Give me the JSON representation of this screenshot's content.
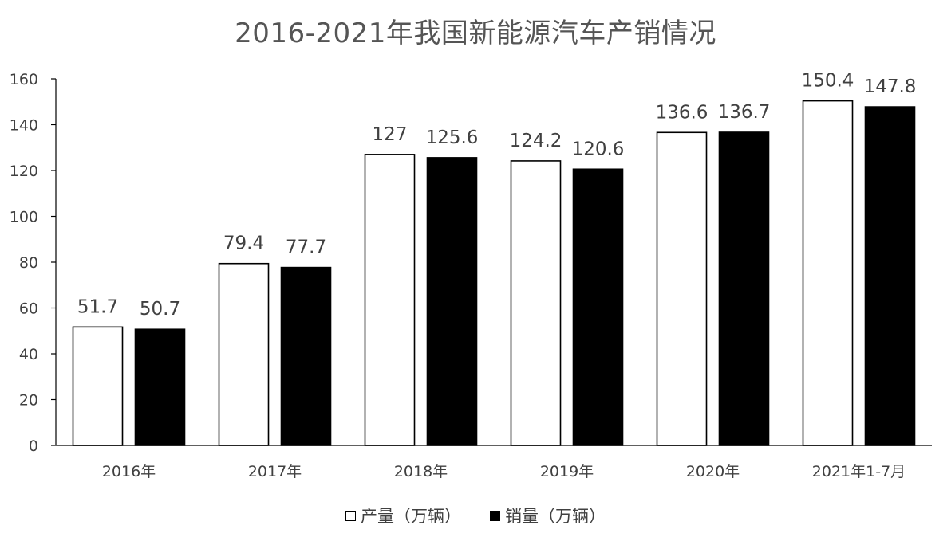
{
  "chart_data": {
    "type": "bar",
    "title": "2016-2021年我国新能源汽车产销情况",
    "categories": [
      "2016年",
      "2017年",
      "2018年",
      "2019年",
      "2020年",
      "2021年1-7月"
    ],
    "series": [
      {
        "name": "产量（万辆）",
        "color": "#ffffff",
        "values": [
          51.7,
          79.4,
          127,
          124.2,
          136.6,
          150.4
        ],
        "labels": [
          "51.7",
          "79.4",
          "127",
          "124.2",
          "136.6",
          "150.4"
        ]
      },
      {
        "name": "销量（万辆）",
        "color": "#000000",
        "values": [
          50.7,
          77.7,
          125.6,
          120.6,
          136.7,
          147.8
        ],
        "labels": [
          "50.7",
          "77.7",
          "125.6",
          "120.6",
          "136.7",
          "147.8"
        ]
      }
    ],
    "ylim": [
      0,
      160
    ],
    "yticks": [
      "0",
      "20",
      "40",
      "60",
      "80",
      "100",
      "120",
      "140",
      "160"
    ],
    "grid": false,
    "legend": "bottom"
  }
}
